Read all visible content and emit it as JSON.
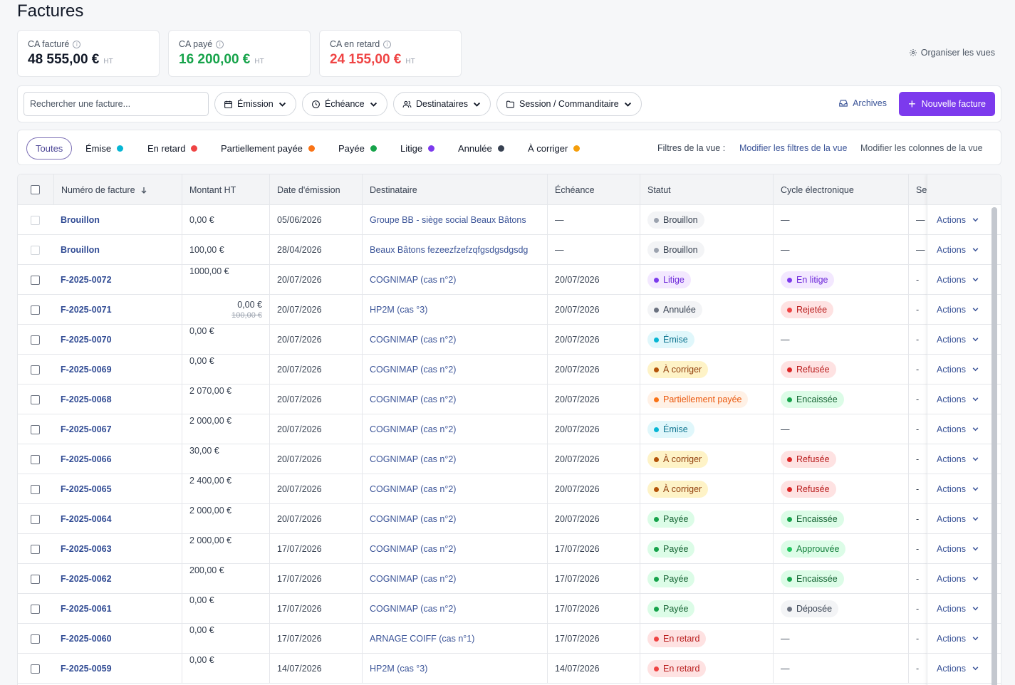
{
  "page": {
    "title": "Factures"
  },
  "kpis": [
    {
      "label": "CA facturé",
      "value": "48 555,00 €",
      "unit": "HT",
      "color": "#111827"
    },
    {
      "label": "CA payé",
      "value": "16 200,00 €",
      "unit": "HT",
      "color": "#16a34a"
    },
    {
      "label": "CA en retard",
      "value": "24 155,00 €",
      "unit": "HT",
      "color": "#ef4444"
    }
  ],
  "organize_label": "Organiser les vues",
  "toolbar": {
    "search_placeholder": "Rechercher une facture...",
    "filters": [
      {
        "label": "Émission",
        "icon": "calendar-icon"
      },
      {
        "label": "Échéance",
        "icon": "clock-icon"
      },
      {
        "label": "Destinataires",
        "icon": "users-icon"
      },
      {
        "label": "Session / Commanditaire",
        "icon": "folder-icon"
      }
    ],
    "archives_label": "Archives",
    "new_label": "Nouvelle facture"
  },
  "status_filters": [
    {
      "label": "Toutes",
      "color": ""
    },
    {
      "label": "Émise",
      "color": "#06b6d4"
    },
    {
      "label": "En retard",
      "color": "#ef4444"
    },
    {
      "label": "Partiellement payée",
      "color": "#f97316"
    },
    {
      "label": "Payée",
      "color": "#16a34a"
    },
    {
      "label": "Litige",
      "color": "#7c3aed"
    },
    {
      "label": "Annulée",
      "color": "#374151"
    },
    {
      "label": "À corriger",
      "color": "#f59e0b"
    }
  ],
  "view_filters": {
    "label": "Filtres de la vue :",
    "edit_filters": "Modifier les filtres de la vue",
    "edit_columns": "Modifier les colonnes de la vue"
  },
  "table": {
    "columns": [
      "Numéro de facture",
      "Montant HT",
      "Date d'émission",
      "Destinataire",
      "Échéance",
      "Statut",
      "Cycle électronique",
      "Se"
    ],
    "action_label": "Actions",
    "rows": [
      {
        "num": "Brouillon",
        "amount": "0,00 €",
        "old_amount": "",
        "emission": "05/06/2026",
        "dest": "Groupe BB - siège social Beaux Bâtons",
        "due": "—",
        "status": "Brouillon",
        "cycle": "—",
        "se": "—",
        "draft": true
      },
      {
        "num": "Brouillon",
        "amount": "100,00 €",
        "old_amount": "",
        "emission": "28/04/2026",
        "dest": "Beaux Bâtons fezeezfzefzqfgsdgsdgsdg",
        "due": "—",
        "status": "Brouillon",
        "cycle": "—",
        "se": "—",
        "draft": true
      },
      {
        "num": "F-2025-0072",
        "amount": "1000,00 €",
        "old_amount": "",
        "emission": "20/07/2026",
        "dest": "COGNIMAP (cas n°2)",
        "due": "20/07/2026",
        "status": "Litige",
        "cycle": "En litige",
        "se": "-"
      },
      {
        "num": "F-2025-0071",
        "amount": "0,00 €",
        "old_amount": "100,00 €",
        "emission": "20/07/2026",
        "dest": "HP2M (cas °3)",
        "due": "20/07/2026",
        "status": "Annulée",
        "cycle": "Rejetée",
        "se": "-"
      },
      {
        "num": "F-2025-0070",
        "amount": "0,00 €",
        "old_amount": "",
        "emission": "20/07/2026",
        "dest": "COGNIMAP (cas n°2)",
        "due": "20/07/2026",
        "status": "Émise",
        "cycle": "—",
        "se": "-"
      },
      {
        "num": "F-2025-0069",
        "amount": "0,00 €",
        "old_amount": "",
        "emission": "20/07/2026",
        "dest": "COGNIMAP (cas n°2)",
        "due": "20/07/2026",
        "status": "À corriger",
        "cycle": "Refusée",
        "se": "-"
      },
      {
        "num": "F-2025-0068",
        "amount": "2 070,00 €",
        "old_amount": "",
        "emission": "20/07/2026",
        "dest": "COGNIMAP (cas n°2)",
        "due": "20/07/2026",
        "status": "Partiellement payée",
        "cycle": "Encaissée",
        "se": "-"
      },
      {
        "num": "F-2025-0067",
        "amount": "2 000,00 €",
        "old_amount": "",
        "emission": "20/07/2026",
        "dest": "COGNIMAP (cas n°2)",
        "due": "20/07/2026",
        "status": "Émise",
        "cycle": "—",
        "se": "-"
      },
      {
        "num": "F-2025-0066",
        "amount": "30,00 €",
        "old_amount": "",
        "emission": "20/07/2026",
        "dest": "COGNIMAP (cas n°2)",
        "due": "20/07/2026",
        "status": "À corriger",
        "cycle": "Refusée",
        "se": "-"
      },
      {
        "num": "F-2025-0065",
        "amount": "2 400,00 €",
        "old_amount": "",
        "emission": "20/07/2026",
        "dest": "COGNIMAP (cas n°2)",
        "due": "20/07/2026",
        "status": "À corriger",
        "cycle": "Refusée",
        "se": "-"
      },
      {
        "num": "F-2025-0064",
        "amount": "2 000,00 €",
        "old_amount": "",
        "emission": "20/07/2026",
        "dest": "COGNIMAP (cas n°2)",
        "due": "20/07/2026",
        "status": "Payée",
        "cycle": "Encaissée",
        "se": "-"
      },
      {
        "num": "F-2025-0063",
        "amount": "2 000,00 €",
        "old_amount": "",
        "emission": "17/07/2026",
        "dest": "COGNIMAP (cas n°2)",
        "due": "17/07/2026",
        "status": "Payée",
        "cycle": "Approuvée",
        "se": "-"
      },
      {
        "num": "F-2025-0062",
        "amount": "200,00 €",
        "old_amount": "",
        "emission": "17/07/2026",
        "dest": "COGNIMAP (cas n°2)",
        "due": "17/07/2026",
        "status": "Payée",
        "cycle": "Encaissée",
        "se": "-"
      },
      {
        "num": "F-2025-0061",
        "amount": "0,00 €",
        "old_amount": "",
        "emission": "17/07/2026",
        "dest": "COGNIMAP (cas n°2)",
        "due": "17/07/2026",
        "status": "Payée",
        "cycle": "Déposée",
        "se": "-"
      },
      {
        "num": "F-2025-0060",
        "amount": "0,00 €",
        "old_amount": "",
        "emission": "17/07/2026",
        "dest": "ARNAGE COIFF (cas n°1)",
        "due": "17/07/2026",
        "status": "En retard",
        "cycle": "—",
        "se": "-"
      },
      {
        "num": "F-2025-0059",
        "amount": "0,00 €",
        "old_amount": "",
        "emission": "14/07/2026",
        "dest": "HP2M (cas °3)",
        "due": "14/07/2026",
        "status": "En retard",
        "cycle": "—",
        "se": "-"
      }
    ]
  },
  "badge_styles": {
    "Brouillon": {
      "bg": "#f3f4f6",
      "fg": "#374151",
      "dot": "#9ca3af"
    },
    "Litige": {
      "bg": "#f3e8ff",
      "fg": "#6d28d9",
      "dot": "#7c3aed"
    },
    "Annulée": {
      "bg": "#f3f4f6",
      "fg": "#374151",
      "dot": "#6b7280"
    },
    "Émise": {
      "bg": "#e0f7fb",
      "fg": "#0e7490",
      "dot": "#06b6d4"
    },
    "À corriger": {
      "bg": "#fef3c7",
      "fg": "#92400e",
      "dot": "#b45309"
    },
    "Partiellement payée": {
      "bg": "#fff1e6",
      "fg": "#ea580c",
      "dot": "#f97316"
    },
    "Payée": {
      "bg": "#dcfce7",
      "fg": "#166534",
      "dot": "#16a34a"
    },
    "En retard": {
      "bg": "#fee2e2",
      "fg": "#b91c1c",
      "dot": "#ef4444"
    },
    "En litige": {
      "bg": "#f3e8ff",
      "fg": "#6d28d9",
      "dot": "#7c3aed"
    },
    "Rejetée": {
      "bg": "#fee2e2",
      "fg": "#b91c1c",
      "dot": "#ef4444"
    },
    "Refusée": {
      "bg": "#fee2e2",
      "fg": "#b91c1c",
      "dot": "#dc2626"
    },
    "Encaissée": {
      "bg": "#dcfce7",
      "fg": "#166534",
      "dot": "#16a34a"
    },
    "Approuvée": {
      "bg": "#dcfce7",
      "fg": "#15803d",
      "dot": "#22c55e"
    },
    "Déposée": {
      "bg": "#f3f4f6",
      "fg": "#374151",
      "dot": "#6b7280"
    }
  }
}
